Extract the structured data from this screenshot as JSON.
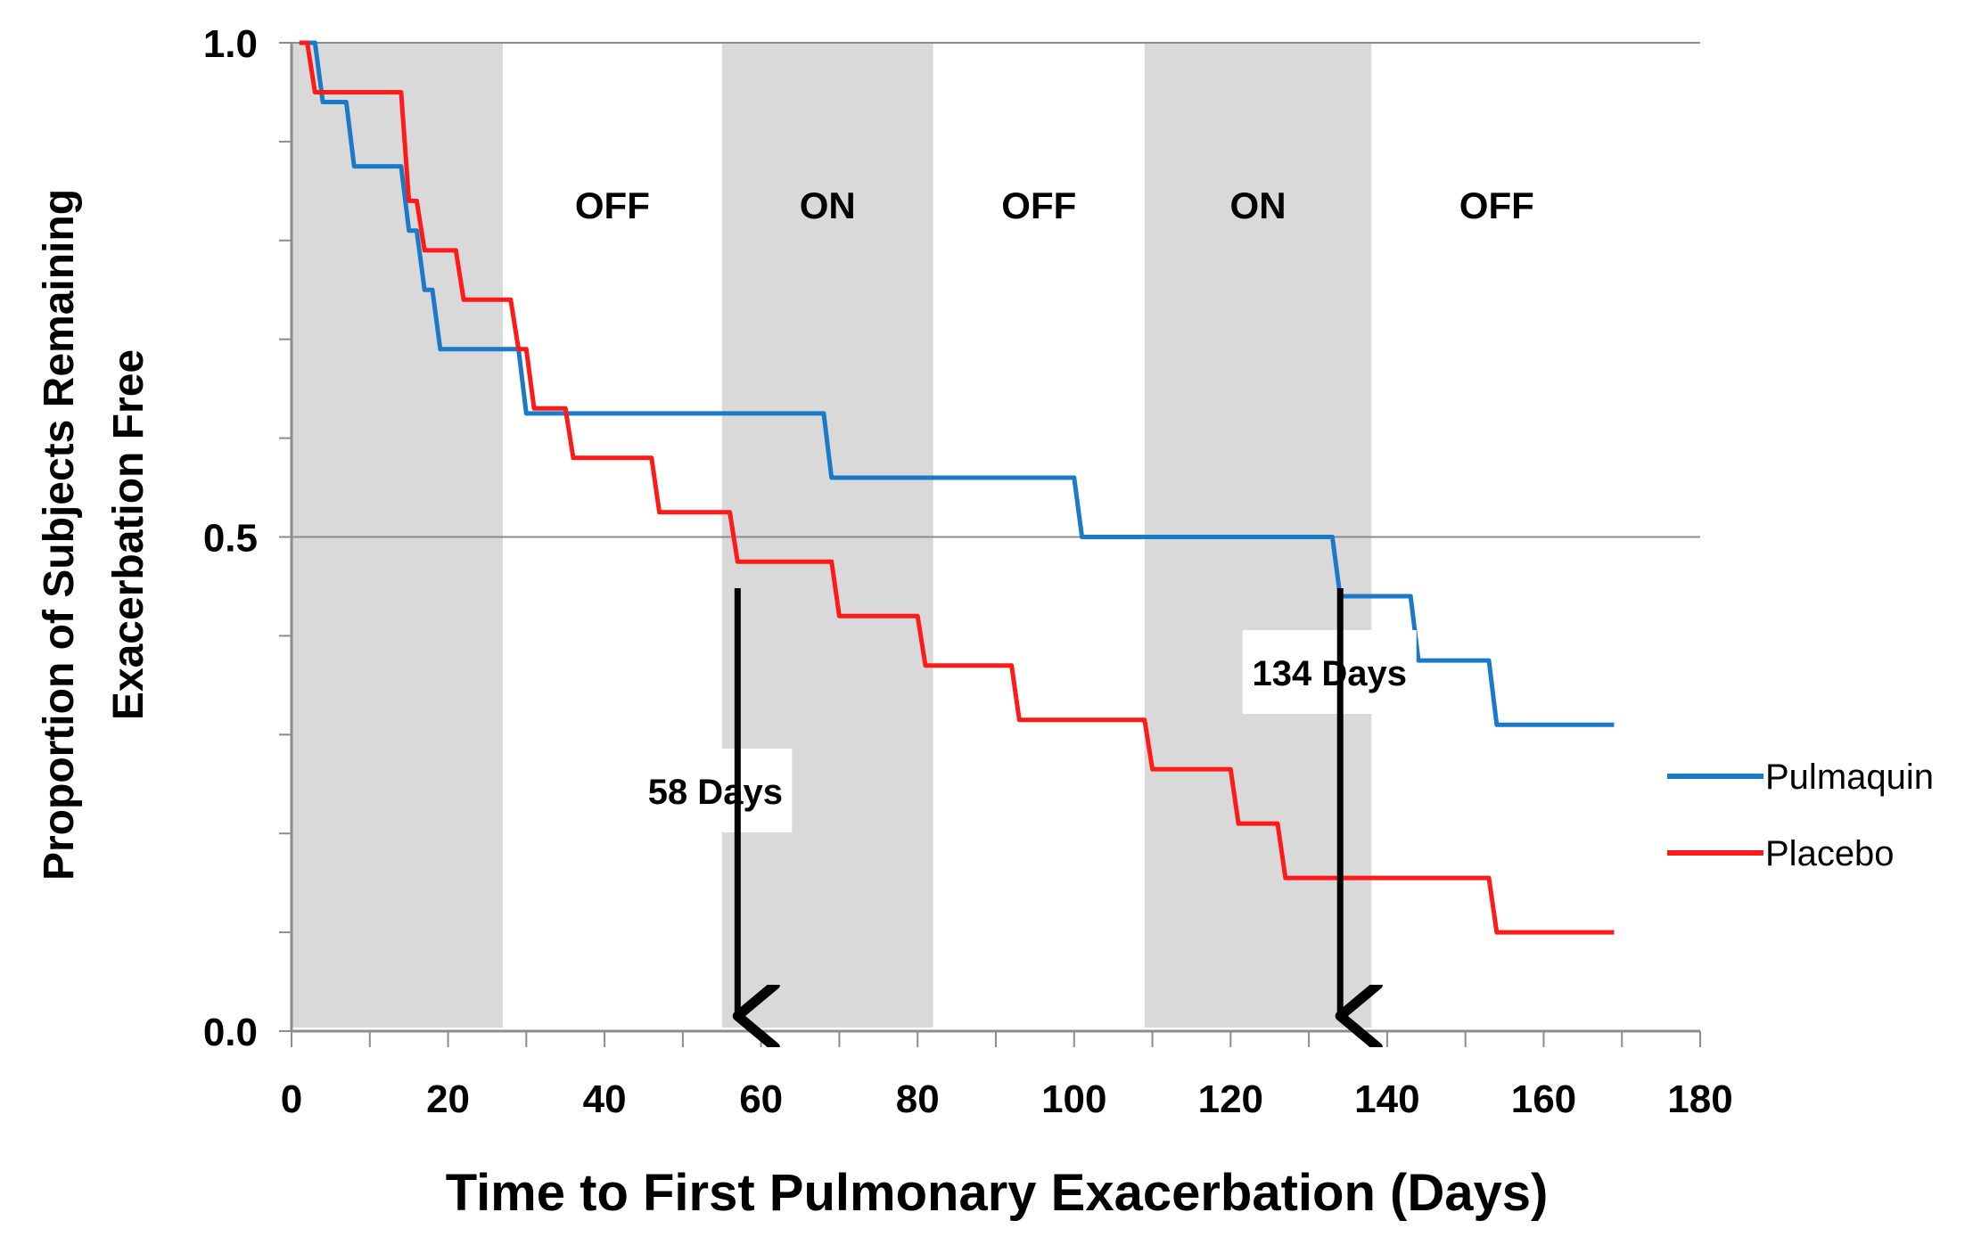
{
  "colors": {
    "pulmaquin": "#1a7ac7",
    "placebo": "#ff1a1a",
    "on_band": "#d9d9d9",
    "gridline": "#8c8c8c",
    "axis": "#8c8c8c",
    "arrow": "#000000"
  },
  "chart_data": {
    "type": "line",
    "xlabel": "Time to First Pulmonary Exacerbation (Days)",
    "ylabel_lines": [
      "Proportion of Subjects Remaining",
      "Exacerbation Free"
    ],
    "xlim": [
      0,
      180
    ],
    "ylim": [
      0,
      1
    ],
    "x_ticks": [
      "0",
      "20",
      "40",
      "60",
      "80",
      "100",
      "120",
      "140",
      "160",
      "180"
    ],
    "y_ticks": [
      "0.0",
      "0.5",
      "1.0"
    ],
    "gridlines_y": [
      0.5,
      1.0
    ],
    "grid": true,
    "legend_position": "right",
    "bands": [
      {
        "start": 0,
        "end": 27,
        "shaded": true,
        "label": ""
      },
      {
        "start": 27,
        "end": 55,
        "shaded": false,
        "label": "OFF"
      },
      {
        "start": 55,
        "end": 82,
        "shaded": true,
        "label": "ON"
      },
      {
        "start": 82,
        "end": 109,
        "shaded": false,
        "label": "OFF"
      },
      {
        "start": 109,
        "end": 138,
        "shaded": true,
        "label": "ON"
      },
      {
        "start": 138,
        "end": 170,
        "shaded": false,
        "label": "OFF"
      }
    ],
    "series": [
      {
        "name": "Pulmaquin",
        "color_key": "pulmaquin",
        "points": [
          [
            1,
            1.0
          ],
          [
            3,
            1.0
          ],
          [
            4,
            0.94
          ],
          [
            7,
            0.94
          ],
          [
            8,
            0.875
          ],
          [
            14,
            0.875
          ],
          [
            15,
            0.81
          ],
          [
            16,
            0.81
          ],
          [
            17,
            0.75
          ],
          [
            18,
            0.75
          ],
          [
            19,
            0.69
          ],
          [
            29,
            0.69
          ],
          [
            30,
            0.625
          ],
          [
            68,
            0.625
          ],
          [
            69,
            0.56
          ],
          [
            100,
            0.56
          ],
          [
            101,
            0.5
          ],
          [
            133,
            0.5
          ],
          [
            134,
            0.44
          ],
          [
            143,
            0.44
          ],
          [
            144,
            0.375
          ],
          [
            153,
            0.375
          ],
          [
            154,
            0.31
          ],
          [
            169,
            0.31
          ]
        ]
      },
      {
        "name": "Placebo",
        "color_key": "placebo",
        "points": [
          [
            1,
            1.0
          ],
          [
            2,
            1.0
          ],
          [
            3,
            0.95
          ],
          [
            14,
            0.95
          ],
          [
            15,
            0.84
          ],
          [
            16,
            0.84
          ],
          [
            17,
            0.79
          ],
          [
            21,
            0.79
          ],
          [
            22,
            0.74
          ],
          [
            28,
            0.74
          ],
          [
            29,
            0.69
          ],
          [
            30,
            0.69
          ],
          [
            31,
            0.63
          ],
          [
            35,
            0.63
          ],
          [
            36,
            0.58
          ],
          [
            46,
            0.58
          ],
          [
            47,
            0.525
          ],
          [
            56,
            0.525
          ],
          [
            57,
            0.475
          ],
          [
            69,
            0.475
          ],
          [
            70,
            0.42
          ],
          [
            80,
            0.42
          ],
          [
            81,
            0.37
          ],
          [
            92,
            0.37
          ],
          [
            93,
            0.315
          ],
          [
            109,
            0.315
          ],
          [
            110,
            0.265
          ],
          [
            120,
            0.265
          ],
          [
            121,
            0.21
          ],
          [
            126,
            0.21
          ],
          [
            127,
            0.155
          ],
          [
            153,
            0.155
          ],
          [
            154,
            0.1
          ],
          [
            169,
            0.1
          ]
        ]
      }
    ],
    "annotations": [
      {
        "text": "58 Days",
        "x": 57
      },
      {
        "text": "134 Days",
        "x": 134
      }
    ]
  }
}
